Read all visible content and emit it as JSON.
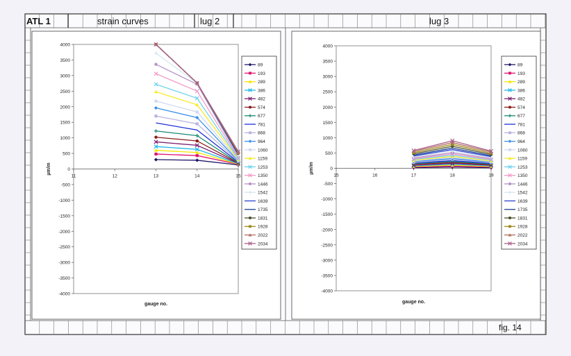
{
  "header": {
    "id": "ATL 1",
    "subject": "strain  curves",
    "left_panel": "lug  2",
    "right_panel": "lug  3",
    "figure": "fig.  14"
  },
  "series_styles": [
    {
      "color": "#1b1464",
      "marker": "diamond"
    },
    {
      "color": "#e0146e",
      "marker": "square"
    },
    {
      "color": "#f4e500",
      "marker": "triangle"
    },
    {
      "color": "#20b8e6",
      "marker": "x"
    },
    {
      "color": "#7a1d6e",
      "marker": "x"
    },
    {
      "color": "#8a1c1c",
      "marker": "circle"
    },
    {
      "color": "#178a74",
      "marker": "plus"
    },
    {
      "color": "#1c2fd8",
      "marker": "none"
    },
    {
      "color": "#b8b3e0",
      "marker": "square"
    },
    {
      "color": "#3b8fe8",
      "marker": "diamond"
    },
    {
      "color": "#cfd8f0",
      "marker": "square"
    },
    {
      "color": "#f6ea2a",
      "marker": "triangle"
    },
    {
      "color": "#6ed2ef",
      "marker": "x"
    },
    {
      "color": "#f29bc8",
      "marker": "x"
    },
    {
      "color": "#b794c9",
      "marker": "circle"
    },
    {
      "color": "#d7e6ef",
      "marker": "plus"
    },
    {
      "color": "#2940cf",
      "marker": "none"
    },
    {
      "color": "#173f8f",
      "marker": "none"
    },
    {
      "color": "#4a4f2a",
      "marker": "circle"
    },
    {
      "color": "#a08a1e",
      "marker": "square"
    },
    {
      "color": "#b07060",
      "marker": "triangle"
    },
    {
      "color": "#a8608a",
      "marker": "x"
    }
  ],
  "chart_data": [
    {
      "type": "line",
      "panel": "lug 2",
      "xlabel": "gauge no.",
      "ylabel": "µm/m",
      "xlim": [
        11,
        15
      ],
      "ylim": [
        -4000,
        4000
      ],
      "xticks": [
        11,
        12,
        13,
        14,
        15
      ],
      "yticks": [
        4000,
        3500,
        3000,
        2500,
        2000,
        1500,
        1000,
        500,
        0,
        -500,
        -1000,
        -1500,
        -2000,
        -2500,
        -3000,
        -3500,
        -4000
      ],
      "grid": false,
      "legend": "right",
      "x": [
        13,
        14,
        15
      ],
      "series": [
        {
          "name": "89",
          "values": [
            300,
            280,
            130
          ]
        },
        {
          "name": "193",
          "values": [
            480,
            430,
            150
          ]
        },
        {
          "name": "289",
          "values": [
            600,
            530,
            160
          ]
        },
        {
          "name": "386",
          "values": [
            720,
            630,
            170
          ]
        },
        {
          "name": "482",
          "values": [
            870,
            760,
            180
          ]
        },
        {
          "name": "574",
          "values": [
            1020,
            900,
            190
          ]
        },
        {
          "name": "677",
          "values": [
            1220,
            1070,
            200
          ]
        },
        {
          "name": "781",
          "values": [
            1480,
            1250,
            220
          ]
        },
        {
          "name": "868",
          "values": [
            1700,
            1450,
            240
          ]
        },
        {
          "name": "964",
          "values": [
            1960,
            1650,
            260
          ]
        },
        {
          "name": "1060",
          "values": [
            2180,
            1830,
            280
          ]
        },
        {
          "name": "1159",
          "values": [
            2480,
            2060,
            300
          ]
        },
        {
          "name": "1253",
          "values": [
            2720,
            2270,
            330
          ]
        },
        {
          "name": "1350",
          "values": [
            3060,
            2500,
            360
          ]
        },
        {
          "name": "1446",
          "values": [
            3360,
            2720,
            390
          ]
        },
        {
          "name": "1542",
          "values": [
            3720,
            2750,
            420
          ]
        },
        {
          "name": "1639",
          "values": [
            4000,
            2760,
            450
          ]
        },
        {
          "name": "1735",
          "values": [
            4000,
            2760,
            480
          ]
        },
        {
          "name": "1831",
          "values": [
            4000,
            2760,
            500
          ]
        },
        {
          "name": "1928",
          "values": [
            4000,
            2760,
            520
          ]
        },
        {
          "name": "2022",
          "values": [
            4000,
            2760,
            540
          ]
        },
        {
          "name": "2034",
          "values": [
            4000,
            2760,
            560
          ]
        }
      ]
    },
    {
      "type": "line",
      "panel": "lug 3",
      "xlabel": "gauge no.",
      "ylabel": "µm/m",
      "xlim": [
        15,
        19
      ],
      "ylim": [
        -4000,
        4000
      ],
      "xticks": [
        15,
        16,
        17,
        18,
        19
      ],
      "yticks": [
        4000,
        3500,
        3000,
        2500,
        2000,
        1500,
        1000,
        500,
        0,
        -500,
        -1000,
        -1500,
        -2000,
        -2500,
        -3000,
        -3500,
        -4000
      ],
      "grid": false,
      "legend": "right",
      "x": [
        17,
        18,
        19
      ],
      "series": [
        {
          "name": "89",
          "values": [
            20,
            40,
            20
          ]
        },
        {
          "name": "193",
          "values": [
            40,
            70,
            40
          ]
        },
        {
          "name": "289",
          "values": [
            60,
            100,
            60
          ]
        },
        {
          "name": "386",
          "values": [
            80,
            130,
            80
          ]
        },
        {
          "name": "482",
          "values": [
            100,
            160,
            100
          ]
        },
        {
          "name": "574",
          "values": [
            130,
            190,
            120
          ]
        },
        {
          "name": "677",
          "values": [
            150,
            220,
            140
          ]
        },
        {
          "name": "781",
          "values": [
            170,
            250,
            160
          ]
        },
        {
          "name": "868",
          "values": [
            190,
            290,
            180
          ]
        },
        {
          "name": "964",
          "values": [
            220,
            320,
            200
          ]
        },
        {
          "name": "1060",
          "values": [
            240,
            360,
            220
          ]
        },
        {
          "name": "1159",
          "values": [
            260,
            390,
            240
          ]
        },
        {
          "name": "1253",
          "values": [
            290,
            430,
            270
          ]
        },
        {
          "name": "1350",
          "values": [
            310,
            470,
            290
          ]
        },
        {
          "name": "1446",
          "values": [
            340,
            510,
            320
          ]
        },
        {
          "name": "1542",
          "values": [
            370,
            560,
            350
          ]
        },
        {
          "name": "1639",
          "values": [
            400,
            610,
            380
          ]
        },
        {
          "name": "1735",
          "values": [
            430,
            660,
            410
          ]
        },
        {
          "name": "1831",
          "values": [
            470,
            720,
            450
          ]
        },
        {
          "name": "1928",
          "values": [
            510,
            780,
            490
          ]
        },
        {
          "name": "2022",
          "values": [
            550,
            840,
            530
          ]
        },
        {
          "name": "2034",
          "values": [
            580,
            900,
            560
          ]
        }
      ]
    }
  ]
}
